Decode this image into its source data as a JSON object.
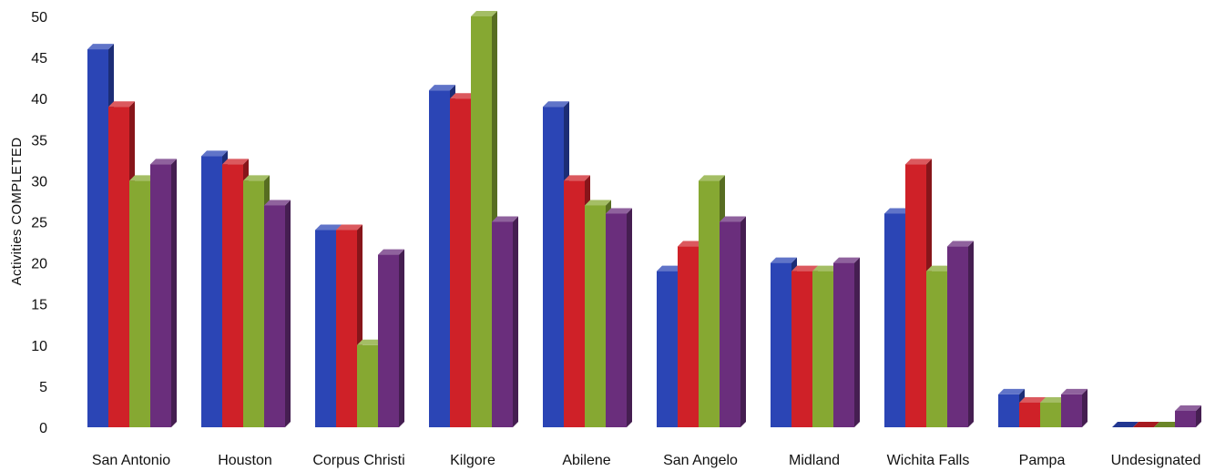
{
  "chart_data": {
    "type": "bar",
    "title": "",
    "xlabel": "",
    "ylabel": "Activities COMPLETED",
    "ylim": [
      0,
      50
    ],
    "yticks": [
      0,
      5,
      10,
      15,
      20,
      25,
      30,
      35,
      40,
      45,
      50
    ],
    "grid": false,
    "legend": "none",
    "categories": [
      "San Antonio",
      "Houston",
      "Corpus Christi",
      "Kilgore",
      "Abilene",
      "San Angelo",
      "Midland",
      "Wichita Falls",
      "Pampa",
      "Undesignated"
    ],
    "series": [
      {
        "color": "#2b45b5",
        "values": [
          46,
          33,
          24,
          41,
          39,
          19,
          20,
          26,
          4,
          0
        ]
      },
      {
        "color": "#cf2128",
        "values": [
          39,
          32,
          24,
          40,
          30,
          22,
          19,
          32,
          3,
          0
        ]
      },
      {
        "color": "#86a832",
        "values": [
          30,
          30,
          10,
          50,
          27,
          30,
          19,
          19,
          3,
          0
        ]
      },
      {
        "color": "#6a2e7c",
        "values": [
          32,
          27,
          21,
          25,
          26,
          25,
          20,
          22,
          4,
          2
        ]
      }
    ]
  }
}
